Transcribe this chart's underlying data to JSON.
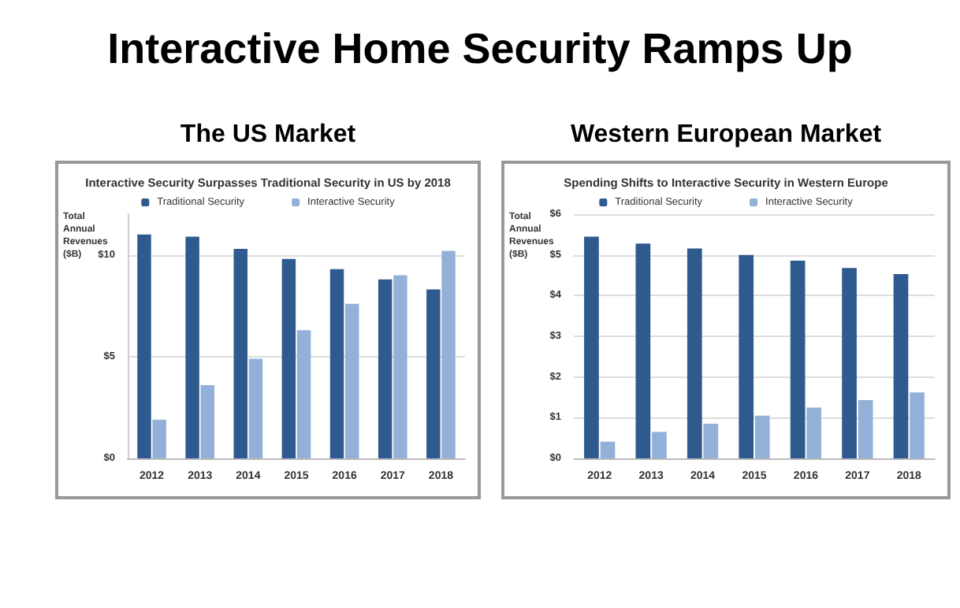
{
  "chart_data": [
    {
      "type": "bar",
      "title": "The US Market",
      "subtitle": "Interactive Security Surpasses Traditional Security in US by 2018",
      "annotations": [
        "Interactive Home Security Ramps Up"
      ],
      "ylabel": "Total Annual Revenues ($B)",
      "categories": [
        "2012",
        "2013",
        "2014",
        "2015",
        "2016",
        "2017",
        "2018"
      ],
      "series": [
        {
          "name": "Traditional Security",
          "color": "#2e5a8e",
          "values": [
            11.0,
            10.9,
            10.3,
            9.8,
            9.3,
            8.8,
            8.3
          ]
        },
        {
          "name": "Interactive Security",
          "color": "#93b1d8",
          "values": [
            1.9,
            3.6,
            4.9,
            6.3,
            7.6,
            9.0,
            10.2
          ]
        }
      ],
      "ylim": [
        0,
        12
      ],
      "yticks": [
        {
          "value": 0,
          "label": "$0"
        },
        {
          "value": 5,
          "label": "$5"
        },
        {
          "value": 10,
          "label": "$10"
        }
      ],
      "grid": "y",
      "legend": "top"
    },
    {
      "type": "bar",
      "title": "Western European Market",
      "subtitle": "Spending Shifts to Interactive Security in Western Europe",
      "ylabel": "Total Annual Revenues ($B)",
      "categories": [
        "2012",
        "2013",
        "2014",
        "2015",
        "2016",
        "2017",
        "2018"
      ],
      "series": [
        {
          "name": "Traditional Security",
          "color": "#2e5a8e",
          "values": [
            5.45,
            5.28,
            5.16,
            5.0,
            4.86,
            4.68,
            4.53
          ]
        },
        {
          "name": "Interactive Security",
          "color": "#93b1d8",
          "values": [
            0.41,
            0.65,
            0.85,
            1.05,
            1.25,
            1.43,
            1.62
          ]
        }
      ],
      "ylim": [
        0,
        6
      ],
      "yticks": [
        {
          "value": 0,
          "label": "$0"
        },
        {
          "value": 1,
          "label": "$1"
        },
        {
          "value": 2,
          "label": "$2"
        },
        {
          "value": 3,
          "label": "$3"
        },
        {
          "value": 4,
          "label": "$4"
        },
        {
          "value": 5,
          "label": "$5"
        },
        {
          "value": 6,
          "label": "$6"
        }
      ],
      "grid": "y",
      "legend": "top"
    }
  ]
}
